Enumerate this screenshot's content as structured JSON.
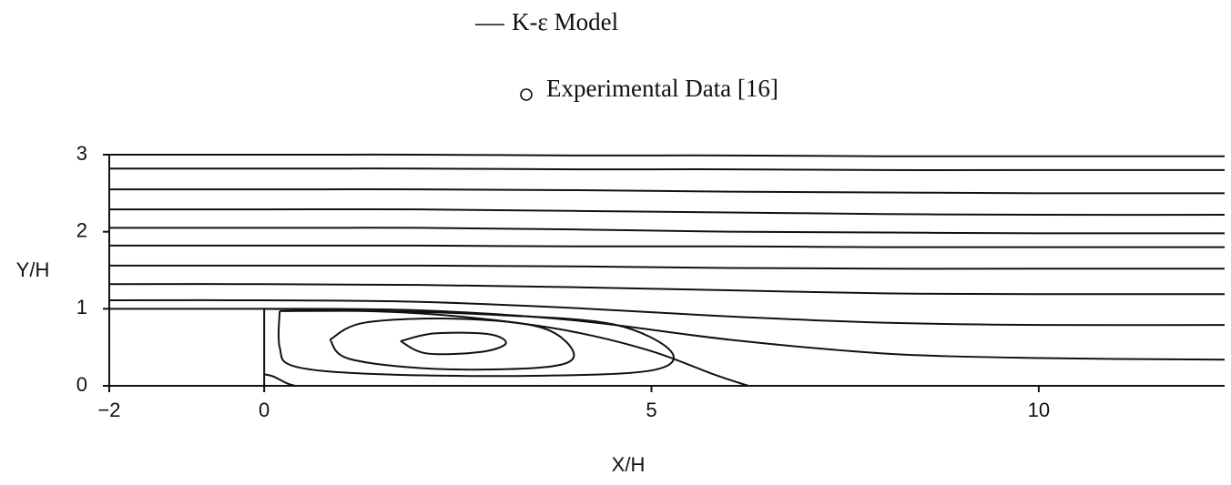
{
  "chart_data": {
    "type": "line",
    "xlabel": "X/H",
    "ylabel": "Y/H",
    "xlim": [
      -2,
      12.4
    ],
    "ylim": [
      0,
      3
    ],
    "xticks": [
      {
        "value": -2,
        "label": "−2"
      },
      0,
      5,
      10
    ],
    "yticks": [
      0,
      1,
      2,
      3
    ],
    "series": [
      {
        "name": "K-ε Model",
        "color": "#111111",
        "x": [
          -2,
          0,
          2,
          4,
          6,
          8,
          10,
          12.4,
          null,
          -2,
          0,
          2,
          4,
          6,
          8,
          10,
          12.4,
          null,
          -2,
          0,
          2,
          4,
          6,
          8,
          10,
          12.4,
          null,
          -2,
          0,
          2,
          4,
          6,
          8,
          10,
          12.4,
          null,
          -2,
          0,
          2,
          4,
          6,
          8,
          10,
          12.4,
          null,
          -2,
          0,
          2,
          4,
          6,
          8,
          10,
          12.4,
          null,
          -2,
          0,
          2,
          4,
          6,
          8,
          10,
          12.4,
          null,
          -2,
          0,
          2,
          4,
          6,
          8,
          10,
          12.4,
          null,
          -2,
          0,
          2,
          4,
          6,
          8,
          10,
          12.4,
          null,
          0,
          2,
          4,
          6,
          8,
          10,
          12.4,
          null,
          0,
          1,
          2,
          3,
          4,
          5,
          5.8,
          6.25,
          null,
          0.2,
          1.5,
          3,
          4.5,
          5.25,
          5.0,
          3.5,
          1.5,
          0.4,
          0.2,
          0.2,
          null,
          0.85,
          1.3,
          2.5,
          3.6,
          4.0,
          3.6,
          2.2,
          1.1,
          0.85,
          null,
          1.76,
          2.2,
          2.9,
          3.12,
          2.8,
          2.1,
          1.76,
          null,
          0,
          0.12,
          0.3,
          0.4
        ],
        "y": [
          3,
          3,
          3,
          2.99,
          2.99,
          2.98,
          2.98,
          2.98,
          null,
          2.82,
          2.82,
          2.82,
          2.81,
          2.81,
          2.8,
          2.8,
          2.8,
          null,
          2.55,
          2.55,
          2.55,
          2.54,
          2.52,
          2.51,
          2.5,
          2.5,
          null,
          2.29,
          2.29,
          2.29,
          2.27,
          2.25,
          2.23,
          2.22,
          2.22,
          null,
          2.05,
          2.05,
          2.05,
          2.03,
          2.0,
          1.99,
          1.98,
          1.98,
          null,
          1.82,
          1.82,
          1.82,
          1.81,
          1.81,
          1.8,
          1.8,
          1.8,
          null,
          1.56,
          1.56,
          1.56,
          1.55,
          1.53,
          1.52,
          1.52,
          1.52,
          null,
          1.32,
          1.32,
          1.31,
          1.28,
          1.24,
          1.2,
          1.19,
          1.19,
          null,
          1.11,
          1.11,
          1.09,
          1.01,
          0.9,
          0.82,
          0.79,
          0.79,
          null,
          1,
          0.98,
          0.85,
          0.6,
          0.42,
          0.36,
          0.34,
          null,
          1,
          0.98,
          0.94,
          0.85,
          0.7,
          0.45,
          0.15,
          0,
          null,
          0.97,
          0.97,
          0.92,
          0.8,
          0.45,
          0.2,
          0.13,
          0.15,
          0.25,
          0.5,
          0.97,
          null,
          0.6,
          0.82,
          0.87,
          0.75,
          0.4,
          0.24,
          0.22,
          0.35,
          0.6,
          null,
          0.58,
          0.68,
          0.67,
          0.55,
          0.44,
          0.42,
          0.58,
          null,
          0.15,
          0.12,
          0.03,
          0
        ]
      },
      {
        "name": "Experimental Data [16]",
        "color": "#111111",
        "marker": "o",
        "x": [],
        "y": []
      }
    ]
  }
}
